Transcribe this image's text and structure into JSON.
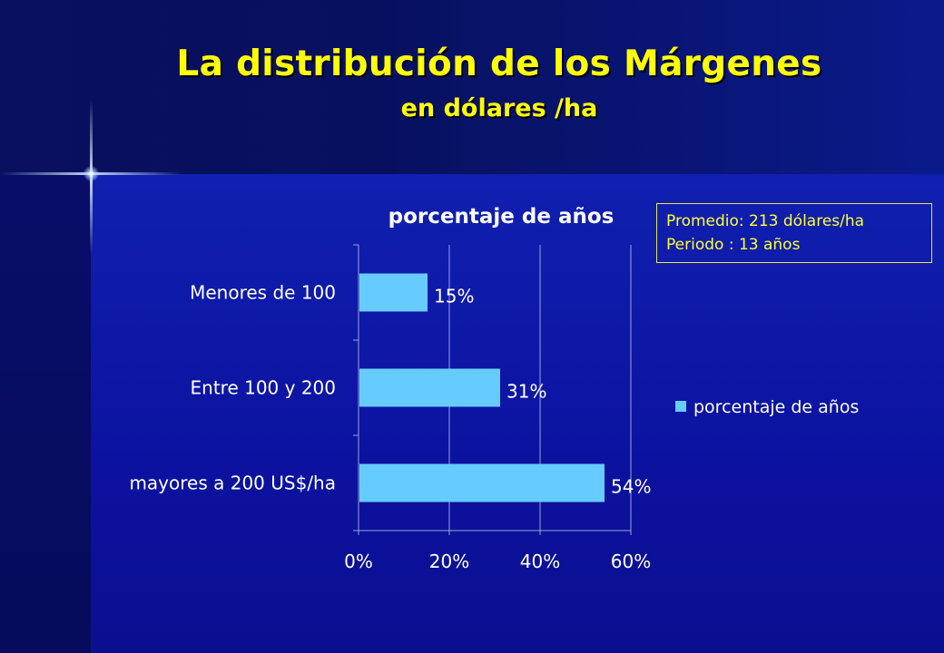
{
  "slide": {
    "title": "La distribución de los Márgenes",
    "subtitle": "en dólares /ha"
  },
  "info_box": {
    "line1": "Promedio: 213 dólares/ha",
    "line2": "Periodo : 13 años"
  },
  "colors": {
    "bar": "#66ccff",
    "text": "#ffffff",
    "accent": "#ffff00",
    "grid": "#9aa3d8"
  },
  "chart_data": {
    "type": "bar",
    "orientation": "horizontal",
    "title": "porcentaje de años",
    "categories": [
      "Menores de 100",
      "Entre 100 y 200",
      "mayores a 200 US$/ha"
    ],
    "series": [
      {
        "name": "porcentaje de años",
        "values": [
          15,
          31,
          54
        ],
        "data_labels": [
          "15%",
          "31%",
          "54%"
        ]
      }
    ],
    "x_ticks": [
      "0%",
      "20%",
      "40%",
      "60%"
    ],
    "xlim": [
      0,
      60
    ],
    "grid": true,
    "legend_position": "right"
  }
}
